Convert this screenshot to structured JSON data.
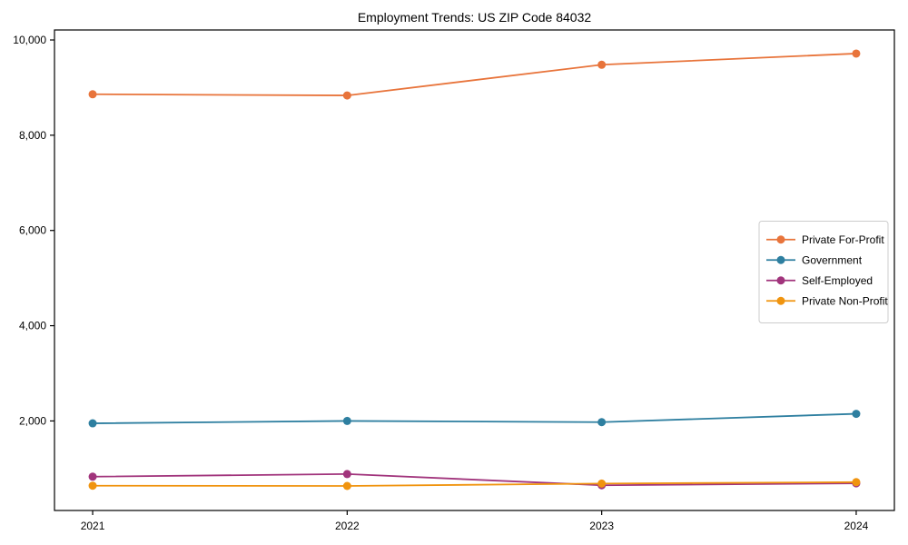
{
  "chart_data": {
    "type": "line",
    "title": "Employment Trends: US ZIP Code 84032",
    "xlabel": "",
    "ylabel": "",
    "x": [
      2021,
      2022,
      2023,
      2024
    ],
    "series": [
      {
        "name": "Private For-Profit",
        "color": "#E8743B",
        "values": [
          8860,
          8835,
          9480,
          9715
        ]
      },
      {
        "name": "Government",
        "color": "#2E7FA0",
        "values": [
          1950,
          2000,
          1975,
          2150
        ]
      },
      {
        "name": "Self-Employed",
        "color": "#A1347C",
        "values": [
          830,
          885,
          650,
          690
        ]
      },
      {
        "name": "Private Non-Profit",
        "color": "#F0940F",
        "values": [
          640,
          635,
          685,
          715
        ]
      }
    ],
    "yticks": [
      2000,
      4000,
      6000,
      8000,
      10000
    ],
    "ytick_labels": [
      "2,000",
      "4,000",
      "6,000",
      "8,000",
      "10,000"
    ],
    "xtick_labels": [
      "2021",
      "2022",
      "2023",
      "2024"
    ],
    "ylim": [
      120,
      10210
    ],
    "xlim": [
      2020.85,
      2024.15
    ],
    "grid": false,
    "legend_position": "center right",
    "frame_color": "#000000",
    "background_color": "#ffffff"
  }
}
